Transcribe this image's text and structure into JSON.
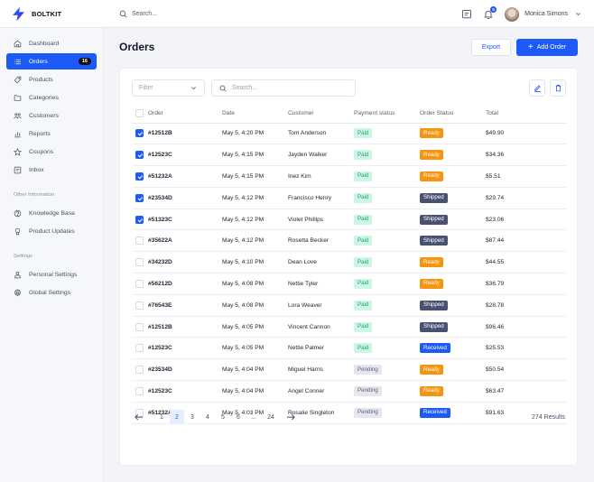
{
  "app": {
    "brand": "BOLTKIT",
    "brand_color": "#1d5af7"
  },
  "topbar": {
    "search_placeholder": "Search...",
    "notification_count": "5",
    "user_name": "Monica Simons"
  },
  "sidebar": {
    "items": [
      {
        "label": "Dashboard",
        "icon": "home-icon"
      },
      {
        "label": "Orders",
        "icon": "list-icon",
        "count": "16",
        "active": true
      },
      {
        "label": "Products",
        "icon": "tag-icon"
      },
      {
        "label": "Categories",
        "icon": "folder-icon"
      },
      {
        "label": "Customers",
        "icon": "users-icon"
      },
      {
        "label": "Reports",
        "icon": "chart-icon"
      },
      {
        "label": "Coupons",
        "icon": "star-icon"
      },
      {
        "label": "Inbox",
        "icon": "inbox-icon"
      }
    ],
    "other_section": "Other Information",
    "other_items": [
      {
        "label": "Knowledge Base",
        "icon": "help-icon"
      },
      {
        "label": "Product Updates",
        "icon": "award-icon"
      }
    ],
    "settings_section": "Settings",
    "settings_items": [
      {
        "label": "Personal Settings",
        "icon": "user-icon"
      },
      {
        "label": "Global Settings",
        "icon": "gear-icon"
      }
    ]
  },
  "page": {
    "title": "Orders",
    "export_label": "Export",
    "add_label": "Add Order"
  },
  "table": {
    "filter_placeholder": "Filter",
    "search_placeholder": "Search...",
    "columns": [
      "Order",
      "Date",
      "Customer",
      "Payment status",
      "Order Status",
      "Total"
    ],
    "rows": [
      {
        "checked": true,
        "order": "#12512B",
        "date": "May 5, 4:20 PM",
        "customer": "Tom Anderson",
        "payment": "Paid",
        "status": "Ready",
        "total": "$49.90"
      },
      {
        "checked": true,
        "order": "#12523C",
        "date": "May 5, 4:15 PM",
        "customer": "Jayden Walker",
        "payment": "Paid",
        "status": "Ready",
        "total": "$34.36"
      },
      {
        "checked": true,
        "order": "#51232A",
        "date": "May 5, 4:15 PM",
        "customer": "Inez Kim",
        "payment": "Paid",
        "status": "Ready",
        "total": "$5.51"
      },
      {
        "checked": true,
        "order": "#23534D",
        "date": "May 5, 4:12 PM",
        "customer": "Francisco Henry",
        "payment": "Paid",
        "status": "Shipped",
        "total": "$29.74"
      },
      {
        "checked": true,
        "order": "#51323C",
        "date": "May 5, 4:12 PM",
        "customer": "Violet Phillips",
        "payment": "Paid",
        "status": "Shipped",
        "total": "$23.06"
      },
      {
        "checked": false,
        "order": "#35622A",
        "date": "May 5, 4:12 PM",
        "customer": "Rosetta Becker",
        "payment": "Paid",
        "status": "Shipped",
        "total": "$87.44"
      },
      {
        "checked": false,
        "order": "#34232D",
        "date": "May 5, 4:10 PM",
        "customer": "Dean Love",
        "payment": "Paid",
        "status": "Ready",
        "total": "$44.55"
      },
      {
        "checked": false,
        "order": "#56212D",
        "date": "May 5, 4:08 PM",
        "customer": "Nettie Tyler",
        "payment": "Paid",
        "status": "Ready",
        "total": "$36.79"
      },
      {
        "checked": false,
        "order": "#76543E",
        "date": "May 5, 4:08 PM",
        "customer": "Lora Weaver",
        "payment": "Paid",
        "status": "Shipped",
        "total": "$28.78"
      },
      {
        "checked": false,
        "order": "#12512B",
        "date": "May 5, 4:05 PM",
        "customer": "Vincent Cannon",
        "payment": "Paid",
        "status": "Shipped",
        "total": "$96.46"
      },
      {
        "checked": false,
        "order": "#12523C",
        "date": "May 5, 4:05 PM",
        "customer": "Nettie Palmer",
        "payment": "Paid",
        "status": "Received",
        "total": "$25.53"
      },
      {
        "checked": false,
        "order": "#23534D",
        "date": "May 5, 4:04 PM",
        "customer": "Miguel Harris",
        "payment": "Pending",
        "status": "Ready",
        "total": "$50.54"
      },
      {
        "checked": false,
        "order": "#12523C",
        "date": "May 5, 4:04 PM",
        "customer": "Angel Conner",
        "payment": "Pending",
        "status": "Ready",
        "total": "$63.47"
      },
      {
        "checked": false,
        "order": "#51232A",
        "date": "May 5, 4:03 PM",
        "customer": "Rosalie Singleton",
        "payment": "Pending",
        "status": "Received",
        "total": "$91.63"
      }
    ]
  },
  "pagination": {
    "pages": [
      "1",
      "2",
      "3",
      "4",
      "5",
      "6",
      "...",
      "24"
    ],
    "current": "2",
    "results": "274 Results"
  },
  "colors": {
    "primary": "#1d5af7",
    "ready": "#f7940f",
    "shipped": "#4a5070",
    "paid_bg": "#cdf5e3",
    "pending_bg": "#e5e7f0"
  }
}
